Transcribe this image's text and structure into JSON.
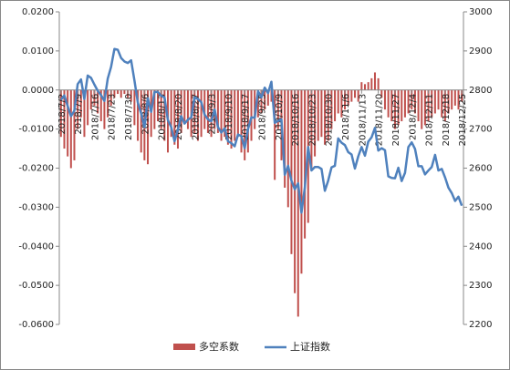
{
  "chart_data": {
    "type": "bar_line",
    "categories": [
      "2018/7/2",
      null,
      null,
      null,
      null,
      "2018/7/9",
      null,
      null,
      null,
      null,
      "2018/7/16",
      null,
      null,
      null,
      null,
      "2018/7/23",
      null,
      null,
      null,
      null,
      "2018/7/30",
      null,
      null,
      null,
      null,
      "2018/8/6",
      null,
      null,
      null,
      null,
      "2018/8/13",
      null,
      null,
      null,
      null,
      "2018/8/20",
      null,
      null,
      null,
      null,
      "2018/8/27",
      null,
      null,
      null,
      null,
      "2018/9/3",
      null,
      null,
      null,
      null,
      "2018/9/10",
      null,
      null,
      null,
      null,
      "2018/9/17",
      null,
      null,
      null,
      null,
      "2018/9/25",
      null,
      null,
      null,
      null,
      "2018/10/9",
      null,
      null,
      null,
      null,
      "2018/10/16",
      null,
      null,
      null,
      null,
      "2018/10/23",
      null,
      null,
      null,
      null,
      "2018/10/30",
      null,
      null,
      null,
      null,
      "2018/11/6",
      null,
      null,
      null,
      null,
      "2018/11/13",
      null,
      null,
      null,
      null,
      "2018/11/20",
      null,
      null,
      null,
      null,
      "2018/11/27",
      null,
      null,
      null,
      null,
      "2018/12/4",
      null,
      null,
      null,
      null,
      "2018/12/11",
      null,
      null,
      null,
      null,
      "2018/12/18",
      null,
      null,
      null,
      null,
      "2018/12/25"
    ],
    "series": [
      {
        "name": "多空系数",
        "color": "#c0504d",
        "kind": "bar",
        "axis": "y",
        "values": [
          -0.012,
          -0.015,
          -0.017,
          -0.02,
          -0.018,
          -0.01,
          -0.007,
          -0.012,
          -0.009,
          -0.005,
          -0.004,
          -0.006,
          -0.008,
          -0.01,
          -0.007,
          -0.004,
          -0.002,
          -0.001,
          -0.002,
          -0.001,
          -0.002,
          -0.003,
          -0.009,
          -0.013,
          -0.016,
          -0.018,
          -0.019,
          -0.012,
          -0.01,
          -0.008,
          -0.01,
          -0.013,
          -0.016,
          -0.012,
          -0.014,
          -0.015,
          -0.011,
          -0.008,
          -0.01,
          -0.012,
          -0.011,
          -0.013,
          -0.012,
          -0.01,
          -0.011,
          -0.012,
          -0.01,
          -0.011,
          -0.013,
          -0.012,
          -0.014,
          -0.015,
          -0.013,
          -0.012,
          -0.016,
          -0.018,
          -0.016,
          -0.013,
          -0.01,
          -0.007,
          -0.006,
          -0.005,
          -0.004,
          -0.003,
          -0.023,
          -0.01,
          -0.018,
          -0.025,
          -0.03,
          -0.042,
          -0.052,
          -0.058,
          -0.047,
          -0.038,
          -0.034,
          -0.02,
          -0.017,
          -0.013,
          -0.012,
          -0.014,
          -0.013,
          -0.01,
          -0.008,
          -0.006,
          -0.007,
          -0.005,
          -0.004,
          -0.003,
          -0.002,
          -0.003,
          0.002,
          0.0015,
          0.002,
          0.003,
          0.0045,
          0.003,
          -0.002,
          -0.005,
          -0.007,
          -0.008,
          -0.01,
          -0.009,
          -0.008,
          -0.007,
          -0.006,
          -0.005,
          -0.006,
          -0.008,
          -0.01,
          -0.009,
          -0.008,
          -0.007,
          -0.006,
          -0.005,
          -0.007,
          -0.008,
          -0.006,
          -0.005,
          -0.004,
          -0.005,
          -0.003
        ]
      },
      {
        "name": "上证指数",
        "color": "#4f81bd",
        "kind": "line",
        "axis": "y2",
        "values": [
          2775,
          2786,
          2759,
          2733,
          2747,
          2815,
          2827,
          2777,
          2837,
          2831,
          2814,
          2798,
          2787,
          2772,
          2829,
          2859,
          2905,
          2903,
          2882,
          2873,
          2869,
          2876,
          2824,
          2768,
          2740,
          2705,
          2779,
          2744,
          2795,
          2795,
          2785,
          2781,
          2723,
          2705,
          2669,
          2698,
          2733,
          2714,
          2724,
          2730,
          2781,
          2777,
          2769,
          2737,
          2725,
          2720,
          2750,
          2705,
          2691,
          2702,
          2669,
          2664,
          2656,
          2686,
          2682,
          2651,
          2700,
          2730,
          2729,
          2797,
          2781,
          2806,
          2792,
          2821,
          2716,
          2721,
          2725,
          2583,
          2606,
          2568,
          2546,
          2561,
          2486,
          2550,
          2654,
          2594,
          2603,
          2603,
          2598,
          2542,
          2568,
          2602,
          2606,
          2676,
          2665,
          2659,
          2641,
          2635,
          2599,
          2630,
          2654,
          2632,
          2668,
          2679,
          2703,
          2645,
          2651,
          2646,
          2579,
          2575,
          2574,
          2601,
          2567,
          2588,
          2654,
          2666,
          2649,
          2605,
          2605,
          2584,
          2594,
          2603,
          2634,
          2594,
          2598,
          2576,
          2550,
          2536,
          2516,
          2527,
          2504
        ]
      }
    ],
    "ylim": [
      -0.06,
      0.02
    ],
    "yticks": [
      {
        "value": -0.06,
        "label": "-0.0600"
      },
      {
        "value": -0.05,
        "label": "-0.0500"
      },
      {
        "value": -0.04,
        "label": "-0.0400"
      },
      {
        "value": -0.03,
        "label": "-0.0300"
      },
      {
        "value": -0.02,
        "label": "-0.0200"
      },
      {
        "value": -0.01,
        "label": "-0.0100"
      },
      {
        "value": 0,
        "label": "0.0000"
      },
      {
        "value": 0.01,
        "label": "0.0100"
      },
      {
        "value": 0.02,
        "label": "0.0200"
      }
    ],
    "y2lim": [
      2200,
      3000
    ],
    "y2ticks": [
      2200,
      2300,
      2400,
      2500,
      2600,
      2700,
      2800,
      2900,
      3000
    ],
    "legend": "bottom",
    "grid": false
  }
}
